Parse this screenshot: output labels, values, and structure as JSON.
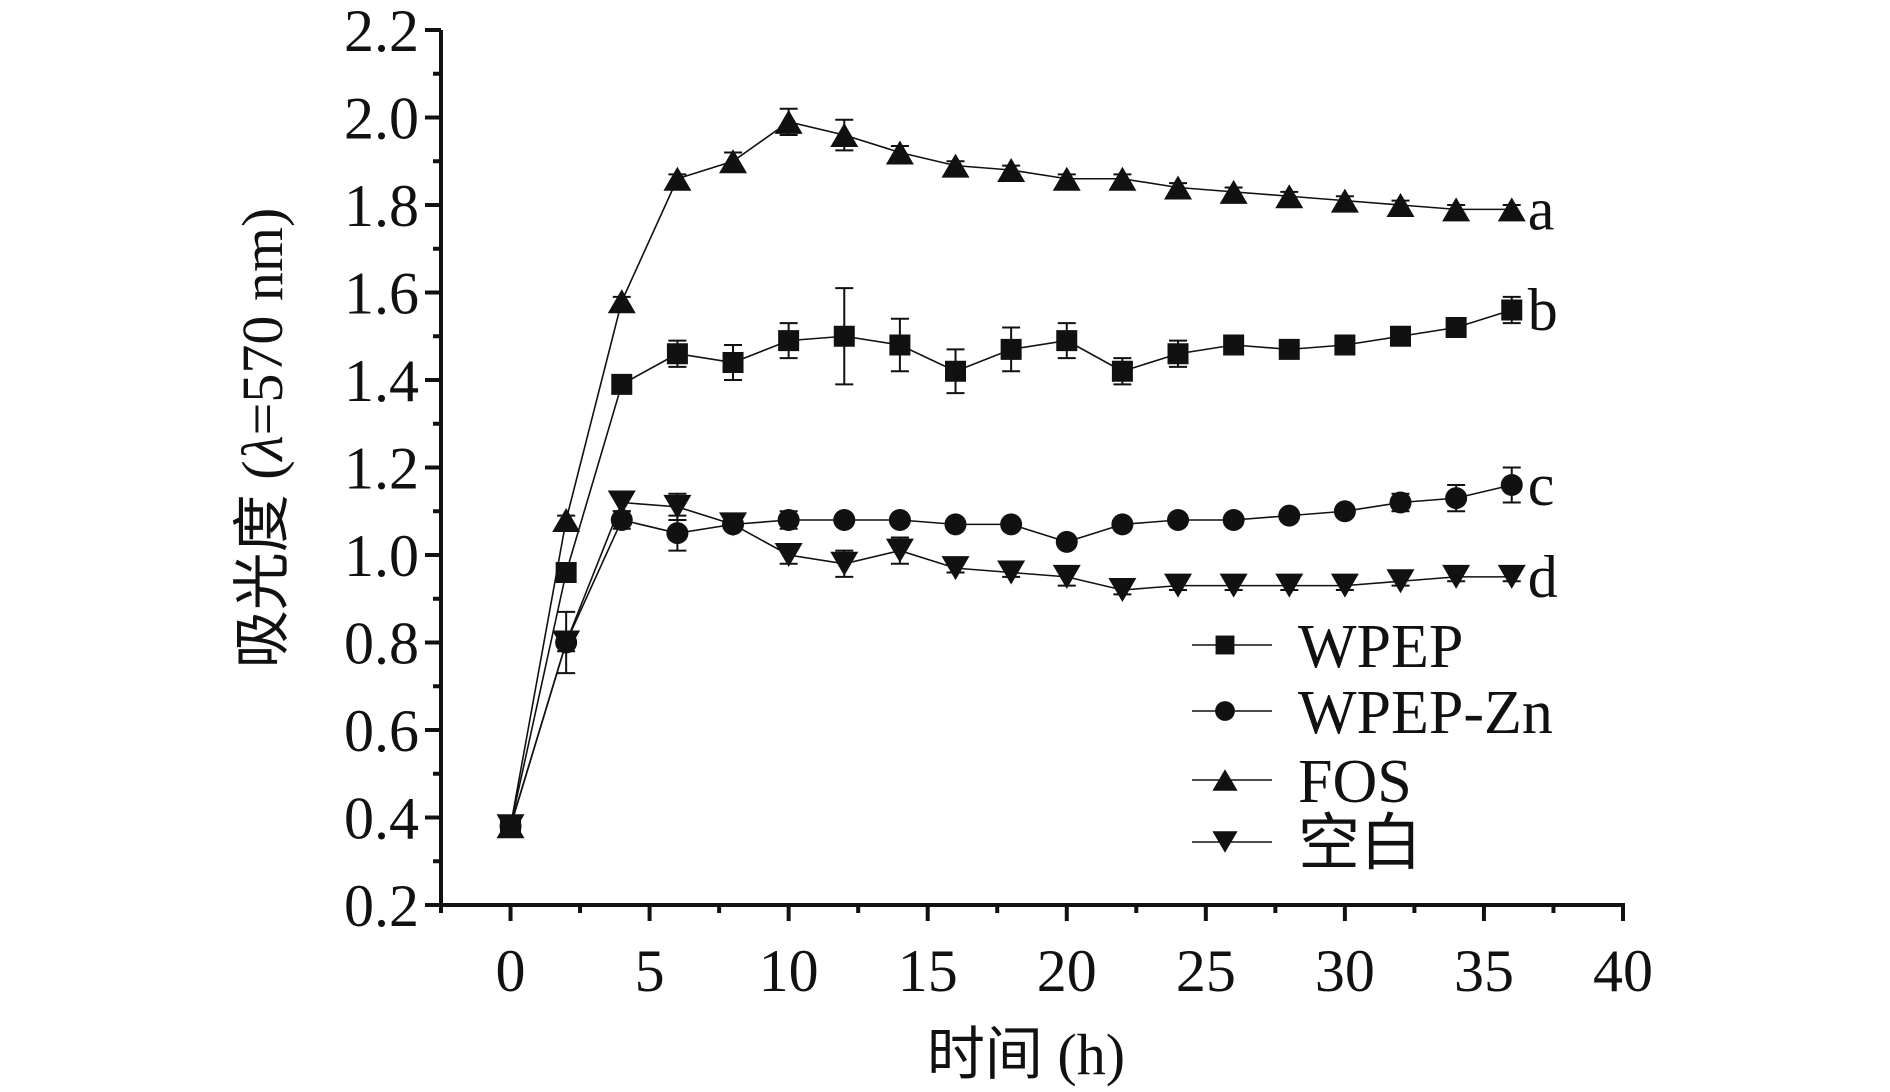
{
  "chart_data": {
    "type": "line",
    "title": "",
    "xlabel": "时间 (h)",
    "ylabel_parts": {
      "prefix": "吸光度 (",
      "symbol": "λ",
      "suffix": "=570 nm)"
    },
    "ylabel": "吸光度 (λ=570 nm)",
    "xlim": [
      -2.5,
      40
    ],
    "ylim": [
      0.2,
      2.2
    ],
    "xticks": [
      0,
      5,
      10,
      15,
      20,
      25,
      30,
      35,
      40
    ],
    "xtick_labels": [
      "0",
      "5",
      "10",
      "15",
      "20",
      "25",
      "30",
      "35",
      "40"
    ],
    "xminor": [
      2.5,
      7.5,
      12.5,
      17.5,
      22.5,
      27.5,
      32.5,
      37.5
    ],
    "yticks": [
      0.2,
      0.4,
      0.6,
      0.8,
      1.0,
      1.2,
      1.4,
      1.6,
      1.8,
      2.0,
      2.2
    ],
    "ytick_labels": [
      "0.2",
      "0.4",
      "0.6",
      "0.8",
      "1.0",
      "1.2",
      "1.4",
      "1.6",
      "1.8",
      "2.0",
      "2.2"
    ],
    "yminor": [
      0.3,
      0.5,
      0.7,
      0.9,
      1.1,
      1.3,
      1.5,
      1.7,
      1.9,
      2.1
    ],
    "grid": false,
    "legend_position": "bottom-right",
    "x": [
      0,
      2,
      4,
      6,
      8,
      10,
      12,
      14,
      16,
      18,
      20,
      22,
      24,
      26,
      28,
      30,
      32,
      34,
      36
    ],
    "series": [
      {
        "name": "WPEP",
        "marker": "square",
        "end_label": "b",
        "values": [
          0.38,
          0.96,
          1.39,
          1.46,
          1.44,
          1.49,
          1.5,
          1.48,
          1.42,
          1.47,
          1.49,
          1.42,
          1.46,
          1.48,
          1.47,
          1.48,
          1.5,
          1.52,
          1.56
        ],
        "errors": [
          0.01,
          0.01,
          0.01,
          0.03,
          0.04,
          0.04,
          0.11,
          0.06,
          0.05,
          0.05,
          0.04,
          0.03,
          0.03,
          0.02,
          0.02,
          0.01,
          0.01,
          0.01,
          0.03
        ]
      },
      {
        "name": "WPEP-Zn",
        "marker": "circle",
        "end_label": "c",
        "values": [
          0.38,
          0.8,
          1.08,
          1.05,
          1.07,
          1.08,
          1.08,
          1.08,
          1.07,
          1.07,
          1.03,
          1.07,
          1.08,
          1.08,
          1.09,
          1.1,
          1.12,
          1.13,
          1.16
        ],
        "errors": [
          0.01,
          0.02,
          0.02,
          0.04,
          0.01,
          0.02,
          0.01,
          0.01,
          0.01,
          0.01,
          0.01,
          0.01,
          0.01,
          0.01,
          0.01,
          0.01,
          0.02,
          0.03,
          0.04
        ]
      },
      {
        "name": "FOS",
        "marker": "triangle-up",
        "end_label": "a",
        "values": [
          0.38,
          1.08,
          1.58,
          1.86,
          1.9,
          1.99,
          1.96,
          1.92,
          1.89,
          1.88,
          1.86,
          1.86,
          1.84,
          1.83,
          1.82,
          1.81,
          1.8,
          1.79,
          1.79
        ],
        "errors": [
          0.01,
          0.01,
          0.01,
          0.01,
          0.02,
          0.03,
          0.035,
          0.015,
          0.01,
          0.01,
          0.01,
          0.01,
          0.01,
          0.01,
          0.01,
          0.01,
          0.01,
          0.01,
          0.01
        ]
      },
      {
        "name": "空白",
        "marker": "triangle-down",
        "end_label": "d",
        "values": [
          0.38,
          0.8,
          1.12,
          1.11,
          1.07,
          1.0,
          0.98,
          1.01,
          0.97,
          0.96,
          0.95,
          0.92,
          0.93,
          0.93,
          0.93,
          0.93,
          0.94,
          0.95,
          0.95
        ],
        "errors": [
          0.01,
          0.07,
          0.02,
          0.03,
          0.01,
          0.02,
          0.03,
          0.03,
          0.01,
          0.01,
          0.02,
          0.01,
          0.01,
          0.01,
          0.01,
          0.01,
          0.01,
          0.01,
          0.01
        ]
      }
    ]
  },
  "colors": {
    "ink": "#111111",
    "background": "#ffffff"
  }
}
